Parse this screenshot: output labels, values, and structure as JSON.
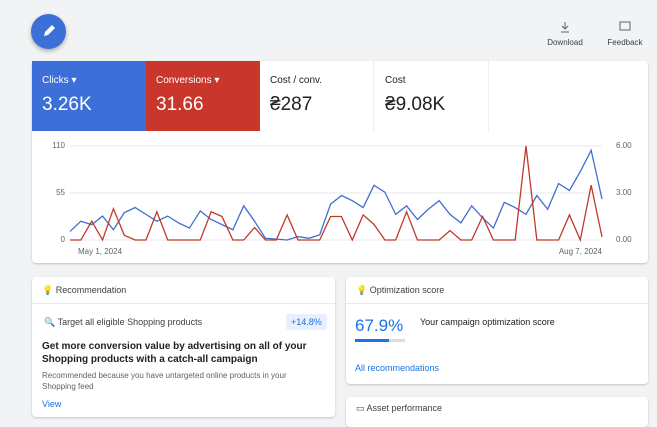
{
  "toolbar": {
    "download": "Download",
    "feedback": "Feedback"
  },
  "metrics": [
    {
      "label": "Clicks",
      "value": "3.26K"
    },
    {
      "label": "Conversions",
      "value": "31.66"
    },
    {
      "label": "Cost / conv.",
      "value": "₴287"
    },
    {
      "label": "Cost",
      "value": "₴9.08K"
    }
  ],
  "performance": {
    "chart": {
      "type": "line",
      "x_labels": [
        "May 1, 2024",
        "Aug 7, 2024"
      ],
      "series": [
        {
          "name": "Clicks",
          "color": "#3f6fd1",
          "values": [
            10,
            22,
            18,
            28,
            12,
            32,
            38,
            30,
            22,
            28,
            20,
            14,
            34,
            24,
            18,
            12,
            40,
            22,
            2,
            1,
            0,
            4,
            2,
            6,
            42,
            52,
            46,
            38,
            64,
            56,
            30,
            40,
            24,
            36,
            46,
            30,
            20,
            40,
            26,
            14,
            44,
            38,
            30,
            52,
            36,
            66,
            58,
            80,
            105,
            48
          ]
        },
        {
          "name": "Conversions",
          "color": "#c0392b",
          "axis": "y2",
          "values": [
            0,
            0,
            1.2,
            0,
            2,
            0.3,
            0,
            0,
            1.8,
            0,
            0,
            0,
            0,
            1.8,
            1.5,
            0,
            0,
            0.8,
            0,
            0,
            1.6,
            0,
            0,
            0,
            1.5,
            1.5,
            0,
            1.6,
            1,
            0,
            0,
            1.8,
            0,
            0,
            0,
            0.6,
            0,
            0,
            1.5,
            0,
            0,
            0,
            6,
            0,
            0,
            0,
            1.6,
            0,
            3.5,
            0.2
          ]
        }
      ],
      "ylim": [
        0,
        110
      ],
      "yticks": [
        0,
        55,
        110
      ],
      "y2lim": [
        0,
        6
      ],
      "y2ticks": [
        {
          "value": 0,
          "label": "0.00"
        },
        {
          "value": 3,
          "label": "3.00"
        },
        {
          "value": 6,
          "label": "6.00"
        }
      ]
    }
  },
  "recommendation": {
    "title": "Recommendation",
    "item": "Target all eligible Shopping products",
    "uplift": "+14.8%",
    "heading": "Get more conversion value by advertising on all of your Shopping products with a catch-all campaign",
    "reason": "Recommended because you have untargeted online products in your Shopping feed",
    "link": "View"
  },
  "optimization": {
    "title": "Optimization score",
    "score_label": "67.9%",
    "score": 67.9,
    "description": "Your campaign optimization score",
    "link": "All recommendations"
  },
  "asset": {
    "title": "Asset performance"
  }
}
